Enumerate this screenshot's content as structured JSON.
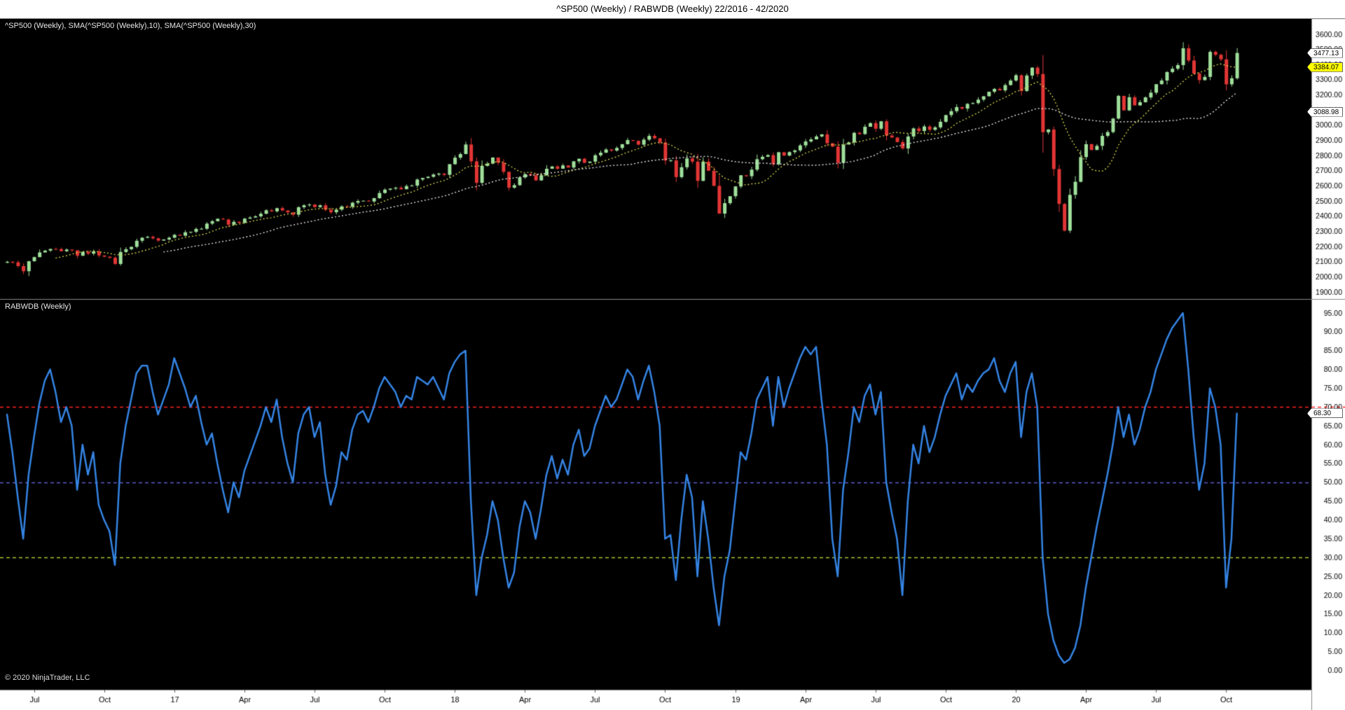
{
  "window": {
    "title": "^SP500 (Weekly) / RABWDB (Weekly)  22/2016 - 42/2020"
  },
  "panels": {
    "price": {
      "label": "^SP500 (Weekly), SMA(^SP500 (Weekly),10), SMA(^SP500 (Weekly),30)"
    },
    "indicator": {
      "label": "RABWDB (Weekly)"
    }
  },
  "footer": {
    "copyright": "© 2020 NinjaTrader, LLC"
  },
  "axis_tags": {
    "last_price": {
      "label": "3477.13",
      "value": 3477.13,
      "color": "#ffffff",
      "panel": "price"
    },
    "sma10": {
      "label": "3384.07",
      "value": 3384.07,
      "color": "#ffff00",
      "panel": "price"
    },
    "sma30": {
      "label": "3088.98",
      "value": 3088.98,
      "color": "#ffffff",
      "panel": "price"
    },
    "indicator": {
      "label": "68.30",
      "value": 68.3,
      "color": "#ffffff",
      "panel": "indicator"
    }
  },
  "chart_data": [
    {
      "type": "candlestick",
      "title": "^SP500 (Weekly) with SMA(10) and SMA(30)",
      "x_range_label": "22/2016 - 42/2020",
      "ylim": [
        1900,
        3600
      ],
      "ytick_step": 100,
      "up_color": "#9fdf9b",
      "down_color": "#e23535",
      "sma10_color": "#cfcf4a",
      "sma30_color": "#e8e8e8",
      "closes": [
        2099,
        2096,
        2071,
        2037,
        2103,
        2130,
        2161,
        2173,
        2184,
        2183,
        2169,
        2180,
        2175,
        2139,
        2165,
        2153,
        2168,
        2141,
        2133,
        2126,
        2085,
        2164,
        2182,
        2198,
        2238,
        2258,
        2264,
        2254,
        2239,
        2246,
        2258,
        2277,
        2271,
        2294,
        2297,
        2316,
        2317,
        2351,
        2367,
        2383,
        2378,
        2344,
        2363,
        2356,
        2384,
        2391,
        2399,
        2416,
        2439,
        2432,
        2453,
        2438,
        2425,
        2410,
        2459,
        2472,
        2477,
        2460,
        2472,
        2442,
        2426,
        2443,
        2465,
        2462,
        2489,
        2500,
        2502,
        2497,
        2519,
        2553,
        2575,
        2582,
        2588,
        2578,
        2599,
        2602,
        2642,
        2652,
        2660,
        2675,
        2681,
        2673,
        2743,
        2786,
        2810,
        2873,
        2762,
        2620,
        2732,
        2747,
        2787,
        2753,
        2693,
        2588,
        2605,
        2656,
        2678,
        2670,
        2636,
        2670,
        2713,
        2728,
        2713,
        2735,
        2721,
        2762,
        2779,
        2752,
        2760,
        2802,
        2819,
        2840,
        2833,
        2850,
        2875,
        2902,
        2897,
        2872,
        2905,
        2930,
        2914,
        2886,
        2767,
        2768,
        2658,
        2723,
        2781,
        2760,
        2633,
        2760,
        2700,
        2600,
        2417,
        2486,
        2532,
        2596,
        2670,
        2664,
        2707,
        2776,
        2792,
        2803,
        2743,
        2822,
        2800,
        2823,
        2834,
        2867,
        2893,
        2907,
        2926,
        2940,
        2881,
        2859,
        2752,
        2873,
        2887,
        2950,
        2942,
        2990,
        3014,
        2977,
        3026,
        2932,
        2919,
        2889,
        2847,
        2926,
        2979,
        2962,
        2992,
        2970,
        2986,
        3023,
        3067,
        3093,
        3120,
        3110,
        3141,
        3146,
        3169,
        3191,
        3221,
        3240,
        3230,
        3265,
        3295,
        3330,
        3226,
        3328,
        3380,
        3338,
        2954,
        2972,
        2711,
        2481,
        2305,
        2541,
        2627,
        2790,
        2875,
        2837,
        2864,
        2930,
        2955,
        3044,
        3194,
        3098,
        3185,
        3131,
        3152,
        3184,
        3215,
        3271,
        3295,
        3351,
        3373,
        3397,
        3508,
        3427,
        3341,
        3298,
        3319,
        3484,
        3465,
        3435,
        3270,
        3310,
        3477.13
      ],
      "x_labels": [
        {
          "text": "Jul",
          "index": 5
        },
        {
          "text": "Oct",
          "index": 18
        },
        {
          "text": "17",
          "index": 31
        },
        {
          "text": "Apr",
          "index": 44
        },
        {
          "text": "Jul",
          "index": 57
        },
        {
          "text": "Oct",
          "index": 70
        },
        {
          "text": "18",
          "index": 83
        },
        {
          "text": "Apr",
          "index": 96
        },
        {
          "text": "Jul",
          "index": 109
        },
        {
          "text": "Oct",
          "index": 122
        },
        {
          "text": "19",
          "index": 135
        },
        {
          "text": "Apr",
          "index": 148
        },
        {
          "text": "Jul",
          "index": 161
        },
        {
          "text": "Oct",
          "index": 174
        },
        {
          "text": "20",
          "index": 187
        },
        {
          "text": "Apr",
          "index": 200
        },
        {
          "text": "Jul",
          "index": 213
        },
        {
          "text": "Oct",
          "index": 226
        }
      ]
    },
    {
      "type": "line",
      "title": "RABWDB (Weekly)",
      "ylim": [
        0,
        95
      ],
      "ytick_step": 5,
      "line_color": "#3584e4",
      "levels": [
        {
          "value": 70,
          "color": "#ff2222",
          "style": "dashed",
          "full_width": true
        },
        {
          "value": 50,
          "color": "#5c5ccd",
          "style": "dashed",
          "full_width": false
        },
        {
          "value": 30,
          "color": "#a6c832",
          "style": "dashed",
          "full_width": false
        }
      ],
      "values": [
        68,
        58,
        46,
        35,
        52,
        62,
        71,
        77,
        80,
        74,
        66,
        70,
        65,
        48,
        60,
        52,
        58,
        44,
        40,
        37,
        28,
        55,
        65,
        72,
        79,
        81,
        81,
        74,
        68,
        72,
        76,
        83,
        79,
        75,
        70,
        73,
        66,
        60,
        63,
        55,
        48,
        42,
        50,
        46,
        53,
        57,
        61,
        65,
        70,
        66,
        72,
        62,
        55,
        50,
        63,
        68,
        70,
        62,
        66,
        52,
        44,
        49,
        58,
        56,
        64,
        68,
        69,
        66,
        70,
        75,
        78,
        76,
        74,
        70,
        73,
        72,
        78,
        77,
        76,
        78,
        75,
        72,
        79,
        82,
        84,
        85,
        45,
        20,
        30,
        36,
        45,
        40,
        30,
        22,
        26,
        38,
        45,
        42,
        35,
        43,
        52,
        57,
        51,
        56,
        52,
        60,
        64,
        57,
        59,
        65,
        69,
        73,
        70,
        72,
        76,
        80,
        78,
        72,
        77,
        81,
        74,
        65,
        35,
        36,
        24,
        40,
        52,
        46,
        25,
        45,
        35,
        22,
        12,
        25,
        32,
        45,
        58,
        56,
        63,
        72,
        75,
        78,
        65,
        78,
        70,
        75,
        79,
        83,
        86,
        84,
        86,
        72,
        60,
        35,
        25,
        48,
        58,
        70,
        66,
        73,
        76,
        68,
        74,
        50,
        42,
        35,
        20,
        45,
        60,
        55,
        65,
        58,
        62,
        68,
        73,
        76,
        79,
        72,
        76,
        74,
        77,
        79,
        80,
        83,
        77,
        74,
        79,
        82,
        62,
        74,
        79,
        70,
        30,
        15,
        8,
        4,
        2,
        3,
        6,
        12,
        22,
        30,
        38,
        45,
        52,
        60,
        70,
        62,
        68,
        60,
        64,
        70,
        74,
        80,
        84,
        88,
        91,
        93,
        95,
        80,
        62,
        48,
        55,
        75,
        70,
        60,
        22,
        35,
        68.3
      ]
    }
  ]
}
